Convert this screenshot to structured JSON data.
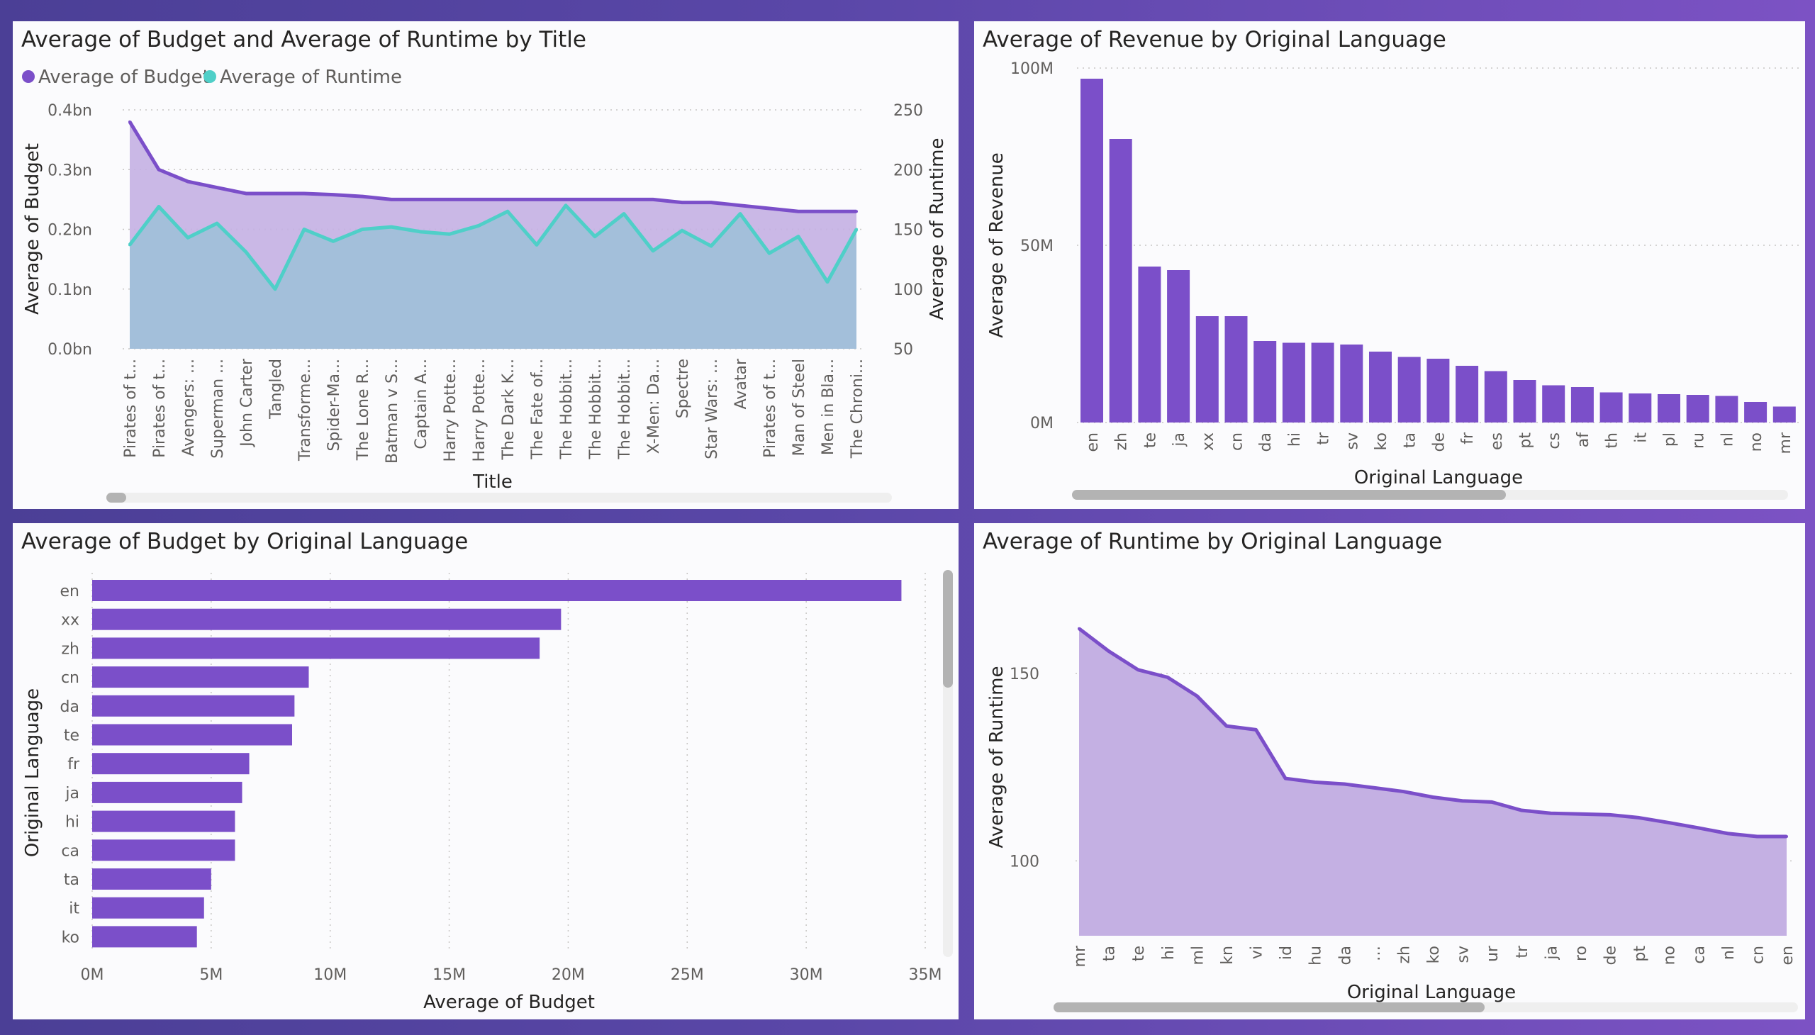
{
  "colors": {
    "primary": "#7b4fc9",
    "primary_fill": "#c4b0e3",
    "runtime_line": "#4fcfc8",
    "runtime_fill": "#9fc0d8",
    "grid": "#c8c6c4",
    "scrollbar_track": "#efefef",
    "scrollbar_thumb": "#b3b3b3"
  },
  "panels": {
    "p1": {
      "title": "Average of Budget and Average of Runtime by Title"
    },
    "p2": {
      "title": "Average of Revenue by Original Language"
    },
    "p3": {
      "title": "Average of Budget by Original Language"
    },
    "p4": {
      "title": "Average of Runtime by Original Language"
    }
  },
  "chart_data": [
    {
      "id": "budget-runtime-by-title",
      "type": "area",
      "title": "Average of Budget and Average of Runtime by Title",
      "legend_position": "top-left",
      "categories": [
        "Pirates of t...",
        "Pirates of t...",
        "Avengers: ...",
        "Superman ...",
        "John Carter",
        "Tangled",
        "Transforme...",
        "Spider-Ma...",
        "The Lone R...",
        "Batman v S...",
        "Captain A...",
        "Harry Potte...",
        "Harry Potte...",
        "The Dark K...",
        "The Fate of...",
        "The Hobbit...",
        "The Hobbit...",
        "The Hobbit...",
        "X-Men: Da...",
        "Spectre",
        "Star Wars: ...",
        "Avatar",
        "Pirates of t...",
        "Man of Steel",
        "Men in Bla...",
        "The Chroni..."
      ],
      "series": [
        {
          "name": "Average of Budget",
          "axis": "left",
          "values": [
            0.38,
            0.3,
            0.28,
            0.27,
            0.26,
            0.26,
            0.26,
            0.258,
            0.255,
            0.25,
            0.25,
            0.25,
            0.25,
            0.25,
            0.25,
            0.25,
            0.25,
            0.25,
            0.25,
            0.245,
            0.245,
            0.24,
            0.235,
            0.23,
            0.23,
            0.23
          ]
        },
        {
          "name": "Average of Runtime",
          "axis": "right",
          "values": [
            137,
            169,
            143,
            155,
            131,
            100,
            150,
            140,
            150,
            152,
            148,
            146,
            153,
            165,
            137,
            170,
            144,
            163,
            132,
            149,
            136,
            163,
            130,
            144,
            106,
            150
          ]
        }
      ],
      "xlabel": "Title",
      "ylabel": "Average of Budget",
      "y2label": "Average of Runtime",
      "ylim": [
        0,
        0.4
      ],
      "y_ticks": [
        "0.0bn",
        "0.1bn",
        "0.2bn",
        "0.3bn",
        "0.4bn"
      ],
      "y2lim": [
        50,
        250
      ],
      "y2_ticks": [
        "50",
        "100",
        "150",
        "200",
        "250"
      ],
      "grid": true
    },
    {
      "id": "revenue-by-language",
      "type": "bar",
      "title": "Average of Revenue by Original Language",
      "categories": [
        "en",
        "zh",
        "te",
        "ja",
        "xx",
        "cn",
        "da",
        "hi",
        "tr",
        "sv",
        "ko",
        "ta",
        "de",
        "fr",
        "es",
        "pt",
        "cs",
        "af",
        "th",
        "it",
        "pl",
        "ru",
        "nl",
        "no",
        "mr"
      ],
      "values": [
        97,
        80,
        44,
        43,
        30,
        30,
        23,
        22.5,
        22.5,
        22,
        20,
        18.5,
        18,
        16,
        14.5,
        12,
        10.5,
        10,
        8.5,
        8.2,
        8,
        7.8,
        7.5,
        5.8,
        4.5
      ],
      "xlabel": "Original Language",
      "ylabel": "Average of Revenue",
      "ylim": [
        0,
        100
      ],
      "y_ticks": [
        "0M",
        "50M",
        "100M"
      ],
      "grid": true
    },
    {
      "id": "budget-by-language",
      "type": "bar",
      "orientation": "horizontal",
      "title": "Average of Budget by Original Language",
      "categories": [
        "en",
        "xx",
        "zh",
        "cn",
        "da",
        "te",
        "fr",
        "ja",
        "hi",
        "ca",
        "ta",
        "it",
        "ko"
      ],
      "values": [
        34,
        19.7,
        18.8,
        9.1,
        8.5,
        8.4,
        6.6,
        6.3,
        6.0,
        6.0,
        5.0,
        4.7,
        4.4
      ],
      "xlabel": "Average of Budget",
      "ylabel": "Original Language",
      "xlim": [
        0,
        35
      ],
      "x_ticks": [
        "0M",
        "5M",
        "10M",
        "15M",
        "20M",
        "25M",
        "30M",
        "35M"
      ],
      "grid": true
    },
    {
      "id": "runtime-by-language",
      "type": "area",
      "title": "Average of Runtime by Original Language",
      "categories": [
        "mr",
        "ta",
        "te",
        "hi",
        "ml",
        "kn",
        "vi",
        "id",
        "hu",
        "da",
        "…",
        "zh",
        "ko",
        "sv",
        "ur",
        "tr",
        "ja",
        "ro",
        "de",
        "pt",
        "no",
        "ca",
        "nl",
        "cn",
        "en"
      ],
      "values": [
        162,
        156,
        151,
        149,
        144,
        136,
        135,
        122,
        121,
        120.5,
        119.5,
        118.5,
        117,
        116,
        115.7,
        113.5,
        112.7,
        112.5,
        112.3,
        111.5,
        110.2,
        108.8,
        107.3,
        106.5,
        106.5
      ],
      "xlabel": "Original Language",
      "ylabel": "Average of Runtime",
      "ylim": [
        80,
        175
      ],
      "y_ticks": [
        "100",
        "150"
      ],
      "grid": true
    }
  ]
}
